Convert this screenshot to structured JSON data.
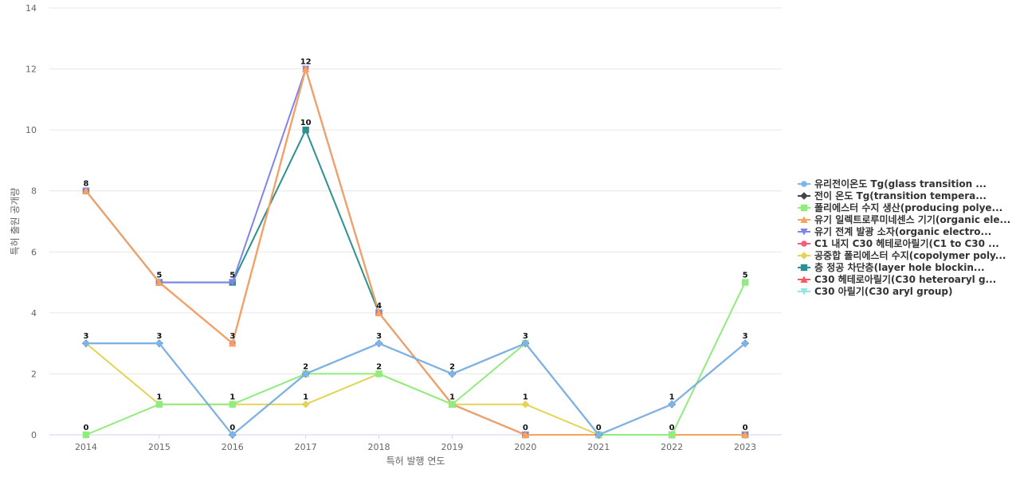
{
  "chart_data": {
    "type": "line",
    "title": "",
    "xlabel": "특허 발행 연도",
    "ylabel": "특허 출원 공개량",
    "ylim": [
      0,
      14
    ],
    "yticks": [
      0,
      2,
      4,
      6,
      8,
      10,
      12,
      14
    ],
    "grid": true,
    "legend_position": "right",
    "categories": [
      "2014",
      "2015",
      "2016",
      "2017",
      "2018",
      "2019",
      "2020",
      "2021",
      "2022",
      "2023"
    ],
    "series": [
      {
        "name": "유리전이온도 Tg(glass transition ...",
        "color": "#7cb5ec",
        "marker": "circle",
        "values": [
          3,
          3,
          0,
          2,
          3,
          2,
          3,
          0,
          1,
          3
        ]
      },
      {
        "name": "전이 온도 Tg(transition tempera...",
        "color": "#434348",
        "marker": "diamond",
        "values": [
          3,
          3,
          0,
          2,
          3,
          2,
          3,
          0,
          1,
          3
        ]
      },
      {
        "name": "폴리에스터 수지 생산(producing polye...",
        "color": "#90ed7d",
        "marker": "square",
        "values": [
          0,
          1,
          1,
          2,
          2,
          1,
          3,
          0,
          0,
          5
        ]
      },
      {
        "name": "유기 일렉트로루미네센스 기기(organic ele...",
        "color": "#f7a35c",
        "marker": "triangle",
        "values": [
          8,
          5,
          3,
          12,
          4,
          1,
          0,
          0,
          0,
          0
        ]
      },
      {
        "name": "유기 전계 발광 소자(organic electro...",
        "color": "#8085e9",
        "marker": "triangle-down",
        "values": [
          8,
          5,
          5,
          12,
          4,
          1,
          0,
          0,
          0,
          0
        ]
      },
      {
        "name": "C1 내지 C30 헤테로아릴기(C1 to C30 ...",
        "color": "#f15c80",
        "marker": "circle",
        "values": [
          8,
          5,
          3,
          12,
          4,
          1,
          0,
          0,
          0,
          0
        ]
      },
      {
        "name": "공중합 폴리에스터 수지(copolymer poly...",
        "color": "#e4d354",
        "marker": "diamond",
        "values": [
          3,
          1,
          1,
          1,
          2,
          1,
          1,
          0,
          0,
          0
        ]
      },
      {
        "name": "층 정공 차단층(layer hole blockin...",
        "color": "#2b908f",
        "marker": "square",
        "values": [
          8,
          5,
          5,
          10,
          4,
          1,
          0,
          0,
          0,
          0
        ]
      },
      {
        "name": "C30 헤테로아릴기(C30 heteroaryl g...",
        "color": "#f45b5b",
        "marker": "triangle",
        "values": [
          8,
          5,
          3,
          12,
          4,
          1,
          0,
          0,
          0,
          0
        ]
      },
      {
        "name": "C30 아릴기(C30 aryl group)",
        "color": "#91e8e1",
        "marker": "triangle-down",
        "values": [
          8,
          5,
          3,
          12,
          4,
          1,
          0,
          0,
          0,
          0
        ]
      }
    ],
    "data_labels": [
      {
        "x": "2014",
        "value": 8
      },
      {
        "x": "2014",
        "value": 3
      },
      {
        "x": "2014",
        "value": 0
      },
      {
        "x": "2015",
        "value": 5
      },
      {
        "x": "2015",
        "value": 3
      },
      {
        "x": "2015",
        "value": 1
      },
      {
        "x": "2016",
        "value": 5
      },
      {
        "x": "2016",
        "value": 3
      },
      {
        "x": "2016",
        "value": 1
      },
      {
        "x": "2016",
        "value": 0
      },
      {
        "x": "2017",
        "value": 12
      },
      {
        "x": "2017",
        "value": 10
      },
      {
        "x": "2017",
        "value": 2
      },
      {
        "x": "2017",
        "value": 1
      },
      {
        "x": "2018",
        "value": 4
      },
      {
        "x": "2018",
        "value": 3
      },
      {
        "x": "2018",
        "value": 2
      },
      {
        "x": "2019",
        "value": 2
      },
      {
        "x": "2019",
        "value": 1
      },
      {
        "x": "2020",
        "value": 3
      },
      {
        "x": "2020",
        "value": 1
      },
      {
        "x": "2020",
        "value": 0
      },
      {
        "x": "2021",
        "value": 0
      },
      {
        "x": "2022",
        "value": 1
      },
      {
        "x": "2022",
        "value": 0
      },
      {
        "x": "2023",
        "value": 5
      },
      {
        "x": "2023",
        "value": 3
      },
      {
        "x": "2023",
        "value": 0
      }
    ]
  }
}
